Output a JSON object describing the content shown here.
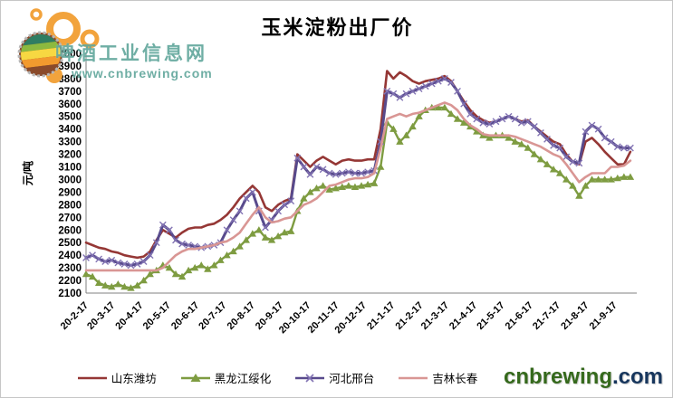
{
  "watermark": {
    "logo_text": "啤酒工业信息网",
    "logo_url": "www.cnbrewing.com"
  },
  "brand": {
    "name": "cnbrewing",
    "tld": ".com"
  },
  "chart_data": {
    "type": "line",
    "title": "玉米淀粉出厂价",
    "xlabel": "",
    "ylabel": "元/吨",
    "ylim": [
      2100,
      4000
    ],
    "ytick_step": 100,
    "grid": false,
    "legend_position": "bottom",
    "x_start_date": "2020-02-17",
    "x_axis_end_date": "2021-10-11",
    "interval_days": 7,
    "categories": [
      "20-2-17",
      "20-3-17",
      "20-4-17",
      "20-5-17",
      "20-6-17",
      "20-7-17",
      "20-8-17",
      "20-9-17",
      "20-10-17",
      "20-11-17",
      "20-12-17",
      "21-1-17",
      "21-2-17",
      "21-3-17",
      "21-4-17",
      "21-5-17",
      "21-6-17",
      "21-7-17",
      "21-8-17",
      "21-9-17"
    ],
    "axis_color": "#808080",
    "series": [
      {
        "name": "山东潍坊",
        "color": "#953735",
        "marker": "none",
        "line_width": 2.6,
        "values": [
          2500,
          2480,
          2460,
          2450,
          2430,
          2420,
          2400,
          2390,
          2380,
          2390,
          2430,
          2520,
          2600,
          2570,
          2540,
          2580,
          2610,
          2620,
          2620,
          2640,
          2650,
          2680,
          2720,
          2780,
          2850,
          2900,
          2950,
          2900,
          2780,
          2750,
          2800,
          2830,
          2850,
          3200,
          3150,
          3100,
          3150,
          3180,
          3150,
          3120,
          3150,
          3160,
          3150,
          3150,
          3160,
          3160,
          3400,
          3860,
          3800,
          3850,
          3820,
          3780,
          3760,
          3780,
          3790,
          3800,
          3820,
          3780,
          3700,
          3620,
          3550,
          3500,
          3470,
          3450,
          3460,
          3480,
          3500,
          3480,
          3460,
          3470,
          3420,
          3380,
          3340,
          3300,
          3280,
          3200,
          3140,
          3120,
          3300,
          3330,
          3280,
          3220,
          3170,
          3120,
          3120,
          3220
        ]
      },
      {
        "name": "黑龙江绥化",
        "color": "#7e9c41",
        "marker": "triangle",
        "line_width": 2.4,
        "values": [
          2250,
          2230,
          2180,
          2160,
          2150,
          2170,
          2150,
          2140,
          2160,
          2200,
          2250,
          2280,
          2320,
          2300,
          2250,
          2230,
          2280,
          2300,
          2320,
          2290,
          2320,
          2360,
          2400,
          2430,
          2470,
          2520,
          2570,
          2600,
          2540,
          2520,
          2550,
          2580,
          2590,
          2750,
          2850,
          2900,
          2930,
          2950,
          2920,
          2930,
          2940,
          2950,
          2940,
          2950,
          2960,
          2970,
          3100,
          3450,
          3400,
          3300,
          3350,
          3420,
          3500,
          3550,
          3570,
          3570,
          3570,
          3520,
          3480,
          3450,
          3420,
          3380,
          3350,
          3330,
          3350,
          3350,
          3330,
          3300,
          3280,
          3250,
          3200,
          3160,
          3120,
          3080,
          3050,
          3000,
          2950,
          2870,
          2950,
          3000,
          3000,
          3000,
          3000,
          3010,
          3020,
          3020
        ]
      },
      {
        "name": "河北邢台",
        "color": "#584a8c",
        "marker": "x",
        "marker_color": "#8273b3",
        "line_width": 3.0,
        "values": [
          2380,
          2400,
          2370,
          2350,
          2360,
          2340,
          2330,
          2320,
          2330,
          2350,
          2400,
          2500,
          2640,
          2600,
          2520,
          2490,
          2480,
          2470,
          2460,
          2470,
          2480,
          2500,
          2600,
          2680,
          2750,
          2850,
          2900,
          2750,
          2620,
          2680,
          2750,
          2800,
          2830,
          3170,
          3100,
          3040,
          3100,
          3080,
          3050,
          3040,
          3050,
          3060,
          3050,
          3050,
          3060,
          3070,
          3300,
          3700,
          3680,
          3650,
          3680,
          3700,
          3720,
          3740,
          3760,
          3780,
          3800,
          3770,
          3700,
          3600,
          3520,
          3480,
          3450,
          3440,
          3460,
          3480,
          3500,
          3480,
          3450,
          3460,
          3420,
          3370,
          3320,
          3270,
          3250,
          3180,
          3140,
          3130,
          3380,
          3430,
          3400,
          3330,
          3300,
          3260,
          3250,
          3250
        ]
      },
      {
        "name": "吉林长春",
        "color": "#d99694",
        "marker": "none",
        "line_width": 2.6,
        "values": [
          2280,
          2280,
          2280,
          2280,
          2280,
          2280,
          2280,
          2280,
          2280,
          2280,
          2280,
          2280,
          2300,
          2350,
          2400,
          2430,
          2450,
          2450,
          2460,
          2470,
          2480,
          2500,
          2510,
          2540,
          2580,
          2650,
          2720,
          2780,
          2700,
          2660,
          2670,
          2690,
          2700,
          2750,
          2800,
          2820,
          2850,
          2900,
          2950,
          2960,
          2980,
          3000,
          3010,
          3010,
          3020,
          3050,
          3250,
          3480,
          3500,
          3520,
          3500,
          3520,
          3530,
          3550,
          3570,
          3590,
          3610,
          3590,
          3550,
          3480,
          3430,
          3400,
          3360,
          3350,
          3350,
          3350,
          3350,
          3340,
          3320,
          3300,
          3280,
          3260,
          3230,
          3200,
          3180,
          3120,
          3050,
          2980,
          3020,
          3050,
          3050,
          3050,
          3100,
          3100,
          3110,
          3150
        ]
      }
    ]
  }
}
